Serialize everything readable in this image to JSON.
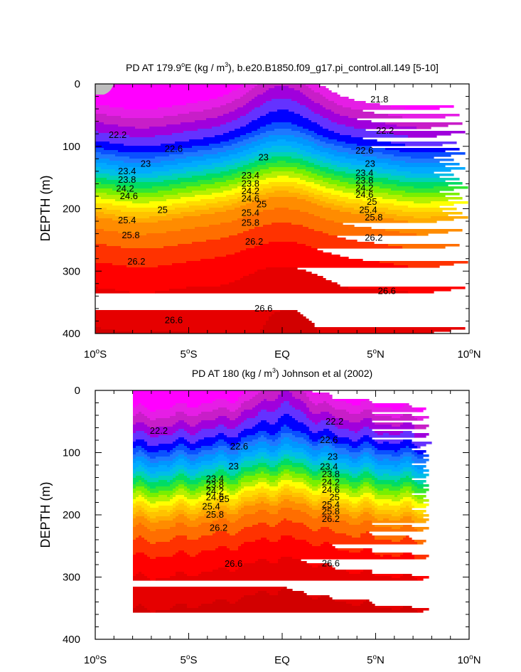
{
  "chart_data": [
    {
      "type": "contour",
      "title": "PD AT 179.9°E (kg / m³), b.e20.B1850.f09_g17.pi_control.all.149 [5-10]",
      "ylabel": "DEPTH (m)",
      "xlabel": "",
      "x_ticks": [
        "10°S",
        "5°S",
        "EQ",
        "5°N",
        "10°N"
      ],
      "y_ticks": [
        "0",
        "100",
        "200",
        "300",
        "400"
      ],
      "xlim": [
        -10,
        10
      ],
      "ylim": [
        400,
        0
      ],
      "y_reversed": true,
      "contour_start": 21.8,
      "contour_interval": 0.2,
      "contour_labels": [
        {
          "text": "21.8",
          "lat": 5.2,
          "depth": 25
        },
        {
          "text": "22.2",
          "lat": -8.8,
          "depth": 82
        },
        {
          "text": "22.2",
          "lat": 5.5,
          "depth": 75
        },
        {
          "text": "22.6",
          "lat": -5.8,
          "depth": 104
        },
        {
          "text": "22.6",
          "lat": 4.4,
          "depth": 107
        },
        {
          "text": "23",
          "lat": -7.3,
          "depth": 128
        },
        {
          "text": "23",
          "lat": -1.0,
          "depth": 118
        },
        {
          "text": "23",
          "lat": 4.7,
          "depth": 128
        },
        {
          "text": "23.4",
          "lat": -8.3,
          "depth": 140
        },
        {
          "text": "23.8",
          "lat": -8.3,
          "depth": 154
        },
        {
          "text": "24.2",
          "lat": -8.4,
          "depth": 168
        },
        {
          "text": "24.6",
          "lat": -8.2,
          "depth": 180
        },
        {
          "text": "23.4",
          "lat": -1.7,
          "depth": 147
        },
        {
          "text": "23.8",
          "lat": -1.7,
          "depth": 160
        },
        {
          "text": "24.2",
          "lat": -1.7,
          "depth": 172
        },
        {
          "text": "24.6",
          "lat": -1.7,
          "depth": 184
        },
        {
          "text": "25",
          "lat": -1.1,
          "depth": 193
        },
        {
          "text": "23.4",
          "lat": 4.4,
          "depth": 143
        },
        {
          "text": "23.8",
          "lat": 4.4,
          "depth": 155
        },
        {
          "text": "24.2",
          "lat": 4.4,
          "depth": 167
        },
        {
          "text": "24.6",
          "lat": 4.4,
          "depth": 178
        },
        {
          "text": "25",
          "lat": 4.8,
          "depth": 189
        },
        {
          "text": "25",
          "lat": -6.4,
          "depth": 202
        },
        {
          "text": "25.4",
          "lat": 4.6,
          "depth": 202
        },
        {
          "text": "25.4",
          "lat": -8.3,
          "depth": 219
        },
        {
          "text": "25.4",
          "lat": -1.7,
          "depth": 207
        },
        {
          "text": "25.8",
          "lat": 4.9,
          "depth": 214
        },
        {
          "text": "25.8",
          "lat": -8.1,
          "depth": 243
        },
        {
          "text": "25.8",
          "lat": -1.7,
          "depth": 223
        },
        {
          "text": "26.2",
          "lat": -1.5,
          "depth": 253
        },
        {
          "text": "26.2",
          "lat": 4.9,
          "depth": 247
        },
        {
          "text": "26.2",
          "lat": -7.8,
          "depth": 285
        },
        {
          "text": "26.6",
          "lat": -1.0,
          "depth": 360
        },
        {
          "text": "26.6",
          "lat": 5.6,
          "depth": 332
        },
        {
          "text": "26.6",
          "lat": -5.8,
          "depth": 379
        }
      ]
    },
    {
      "type": "contour",
      "title": "PD AT 180 (kg / m³) Johnson et al (2002)",
      "ylabel": "DEPTH (m)",
      "xlabel": "",
      "x_ticks": [
        "10°S",
        "5°S",
        "EQ",
        "5°N",
        "10°N"
      ],
      "y_ticks": [
        "0",
        "100",
        "200",
        "300",
        "400"
      ],
      "xlim": [
        -10,
        10
      ],
      "ylim": [
        400,
        0
      ],
      "y_reversed": true,
      "data_extent_lat": [
        -8,
        8
      ],
      "contour_start": 21.8,
      "contour_interval": 0.2,
      "contour_labels": [
        {
          "text": "22.2",
          "lat": -6.6,
          "depth": 65
        },
        {
          "text": "22.2",
          "lat": 2.8,
          "depth": 50
        },
        {
          "text": "22.6",
          "lat": -2.3,
          "depth": 90
        },
        {
          "text": "22.6",
          "lat": 2.5,
          "depth": 80
        },
        {
          "text": "23",
          "lat": -2.6,
          "depth": 122
        },
        {
          "text": "23",
          "lat": 2.7,
          "depth": 107
        },
        {
          "text": "23.4",
          "lat": -3.6,
          "depth": 142
        },
        {
          "text": "23.8",
          "lat": -3.6,
          "depth": 152
        },
        {
          "text": "24.2",
          "lat": -3.6,
          "depth": 162
        },
        {
          "text": "24.6",
          "lat": -3.6,
          "depth": 172
        },
        {
          "text": "25",
          "lat": -3.1,
          "depth": 175
        },
        {
          "text": "25.4",
          "lat": -3.8,
          "depth": 187
        },
        {
          "text": "25.8",
          "lat": -3.6,
          "depth": 200
        },
        {
          "text": "26.2",
          "lat": -3.4,
          "depth": 221
        },
        {
          "text": "23.4",
          "lat": 2.5,
          "depth": 123
        },
        {
          "text": "23.8",
          "lat": 2.6,
          "depth": 135
        },
        {
          "text": "24.2",
          "lat": 2.6,
          "depth": 148
        },
        {
          "text": "24.6",
          "lat": 2.6,
          "depth": 160
        },
        {
          "text": "25",
          "lat": 2.8,
          "depth": 172
        },
        {
          "text": "25.4",
          "lat": 2.6,
          "depth": 184
        },
        {
          "text": "25.8",
          "lat": 2.6,
          "depth": 195
        },
        {
          "text": "26.2",
          "lat": 2.6,
          "depth": 207
        },
        {
          "text": "26.6",
          "lat": -2.6,
          "depth": 279
        },
        {
          "text": "26.6",
          "lat": 2.6,
          "depth": 278
        }
      ]
    }
  ],
  "panels": [
    {
      "title_main": "PD AT 179.9",
      "title_sup": "o",
      "title_mid": "E (kg / m",
      "title_sup2": "3",
      "title_end": "), b.e20.B1850.f09_g17.pi_control.all.149 [5-10]",
      "ylabel": "DEPTH (m)",
      "yticks": [
        "0",
        "100",
        "200",
        "300",
        "400"
      ],
      "xticks": [
        {
          "num": "10",
          "deg": "o",
          "hemi": "S"
        },
        {
          "num": "5",
          "deg": "o",
          "hemi": "S"
        },
        {
          "num": "EQ",
          "deg": "",
          "hemi": ""
        },
        {
          "num": "5",
          "deg": "o",
          "hemi": "N"
        },
        {
          "num": "10",
          "deg": "o",
          "hemi": "N"
        }
      ]
    },
    {
      "title_main": "PD AT 180 (kg / m",
      "title_sup": "3",
      "title_mid": ") Johnson et al (2002)",
      "title_sup2": "",
      "title_end": "",
      "ylabel": "DEPTH (m)",
      "yticks": [
        "0",
        "100",
        "200",
        "300",
        "400"
      ],
      "xticks": [
        {
          "num": "10",
          "deg": "o",
          "hemi": "S"
        },
        {
          "num": "5",
          "deg": "o",
          "hemi": "S"
        },
        {
          "num": "EQ",
          "deg": "",
          "hemi": ""
        },
        {
          "num": "5",
          "deg": "o",
          "hemi": "N"
        },
        {
          "num": "10",
          "deg": "o",
          "hemi": "N"
        }
      ]
    }
  ],
  "colors": {
    "bands": [
      "#ff00ff",
      "#e51ee5",
      "#c81ec8",
      "#a000dc",
      "#6432ff",
      "#0000ff",
      "#0a50ff",
      "#1e78ff",
      "#0096ff",
      "#00aaff",
      "#00bee6",
      "#00d2b4",
      "#00dc64",
      "#32e632",
      "#78f000",
      "#b4f000",
      "#ffff00",
      "#ffdc00",
      "#ffc300",
      "#ffaa00",
      "#ff8c00",
      "#ff6e00",
      "#ff3200",
      "#ff0000",
      "#e60000",
      "#d20000",
      "#be0000"
    ],
    "missing": "#bebebe"
  }
}
